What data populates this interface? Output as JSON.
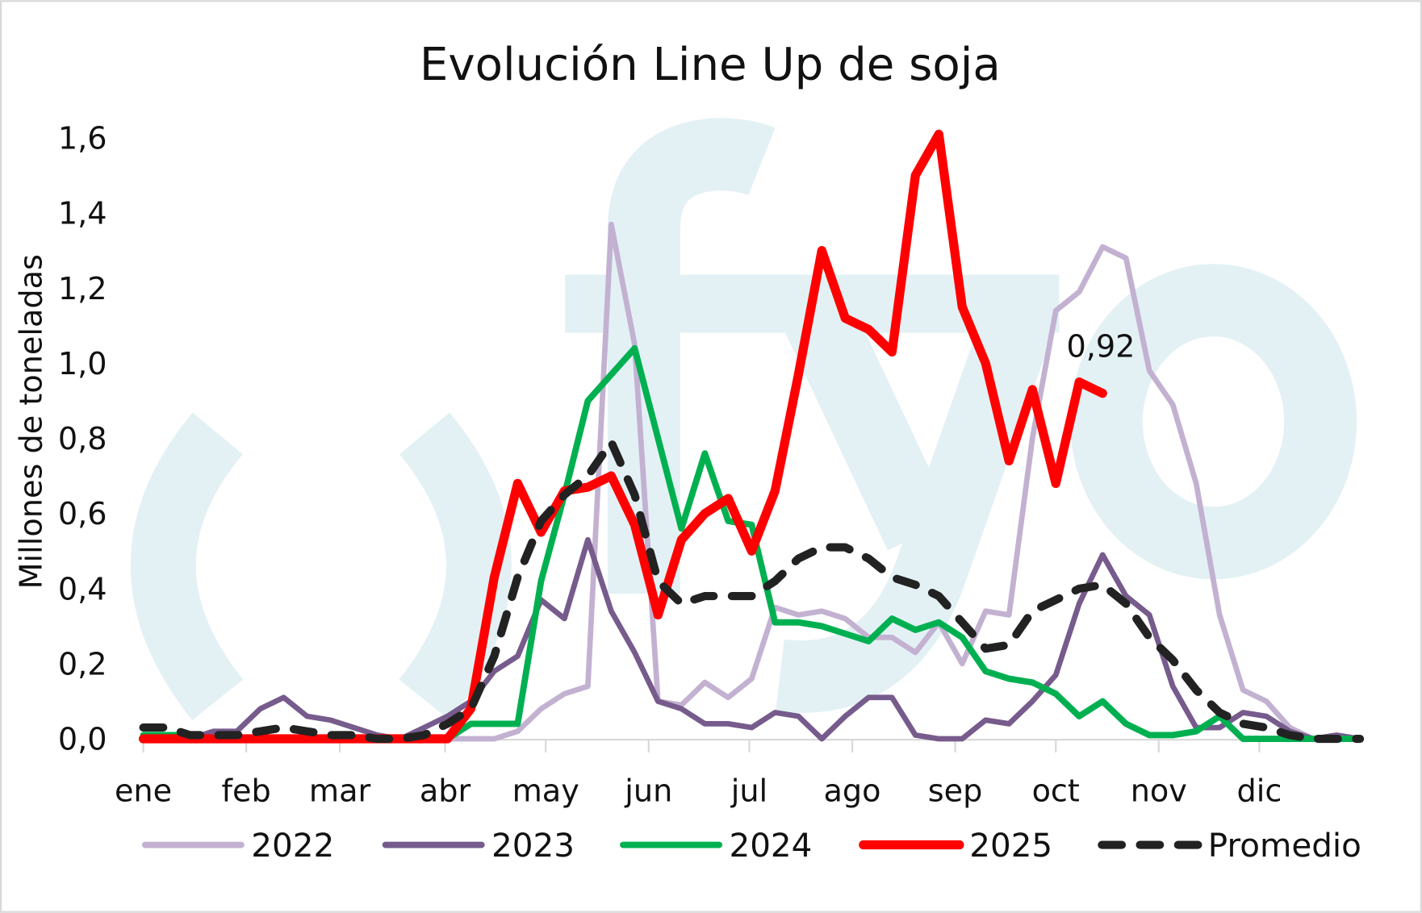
{
  "chart_data": {
    "type": "line",
    "title": "Evolución Line Up de soja",
    "xlabel": "",
    "ylabel": "Millones de toneladas",
    "ylim": [
      0,
      1.6
    ],
    "yticks": [
      "0,0",
      "0,2",
      "0,4",
      "0,6",
      "0,8",
      "1,0",
      "1,2",
      "1,4",
      "1,6"
    ],
    "ytick_values": [
      0,
      0.2,
      0.4,
      0.6,
      0.8,
      1.0,
      1.2,
      1.4,
      1.6
    ],
    "x_unit": "semana",
    "months": [
      {
        "label": "ene",
        "week": 0
      },
      {
        "label": "feb",
        "week": 4.4
      },
      {
        "label": "mar",
        "week": 8.4
      },
      {
        "label": "abr",
        "week": 12.9
      },
      {
        "label": "may",
        "week": 17.2
      },
      {
        "label": "jun",
        "week": 21.6
      },
      {
        "label": "jul",
        "week": 25.9
      },
      {
        "label": "ago",
        "week": 30.3
      },
      {
        "label": "sep",
        "week": 34.7
      },
      {
        "label": "oct",
        "week": 39.0
      },
      {
        "label": "nov",
        "week": 43.4
      },
      {
        "label": "dic",
        "week": 47.7
      }
    ],
    "grid": false,
    "legend_position": "bottom",
    "series": [
      {
        "name": "2022",
        "color": "#c3b1d1",
        "width": 6,
        "dash": false,
        "values": [
          0,
          0,
          0,
          0,
          0,
          0,
          0,
          0,
          0,
          0,
          0,
          0,
          0,
          0,
          0,
          0,
          0.02,
          0.08,
          0.12,
          0.14,
          1.37,
          1.05,
          0.1,
          0.09,
          0.15,
          0.11,
          0.16,
          0.35,
          0.33,
          0.34,
          0.32,
          0.27,
          0.27,
          0.23,
          0.31,
          0.2,
          0.34,
          0.33,
          0.8,
          1.14,
          1.19,
          1.31,
          1.28,
          0.98,
          0.89,
          0.68,
          0.33,
          0.13,
          0.1,
          0.03,
          0,
          0,
          0
        ]
      },
      {
        "name": "2023",
        "color": "#765b8c",
        "width": 6,
        "dash": false,
        "values": [
          0.01,
          0.01,
          0,
          0.02,
          0.02,
          0.08,
          0.11,
          0.06,
          0.05,
          0.03,
          0.01,
          0,
          0.03,
          0.06,
          0.1,
          0.18,
          0.22,
          0.37,
          0.32,
          0.53,
          0.34,
          0.23,
          0.1,
          0.08,
          0.04,
          0.04,
          0.03,
          0.07,
          0.06,
          0,
          0.06,
          0.11,
          0.11,
          0.01,
          0,
          0,
          0.05,
          0.04,
          0.1,
          0.17,
          0.36,
          0.49,
          0.38,
          0.33,
          0.14,
          0.03,
          0.03,
          0.07,
          0.06,
          0.02,
          0,
          0.01,
          0
        ]
      },
      {
        "name": "2024",
        "color": "#00b050",
        "width": 7,
        "dash": false,
        "values": [
          0.01,
          0.01,
          0.01,
          0,
          0,
          0,
          0,
          0,
          0,
          0,
          0,
          0,
          0,
          0,
          0.04,
          0.04,
          0.04,
          0.42,
          0.65,
          0.9,
          0.97,
          1.04,
          0.8,
          0.56,
          0.76,
          0.58,
          0.57,
          0.31,
          0.31,
          0.3,
          0.28,
          0.26,
          0.32,
          0.29,
          0.31,
          0.27,
          0.18,
          0.16,
          0.15,
          0.12,
          0.06,
          0.1,
          0.04,
          0.01,
          0.01,
          0.02,
          0.06,
          0,
          0,
          0,
          0,
          0,
          0
        ]
      },
      {
        "name": "2025",
        "color": "#ff0000",
        "width": 10,
        "dash": false,
        "values": [
          0,
          0,
          0,
          0,
          0,
          0,
          0,
          0,
          0,
          0,
          0,
          0,
          0,
          0,
          0.08,
          0.43,
          0.68,
          0.55,
          0.66,
          0.67,
          0.7,
          0.57,
          0.33,
          0.53,
          0.6,
          0.64,
          0.5,
          0.66,
          0.97,
          1.3,
          1.12,
          1.09,
          1.03,
          1.5,
          1.61,
          1.15,
          1.0,
          0.74,
          0.93,
          0.68,
          0.95,
          0.92
        ]
      },
      {
        "name": "Promedio",
        "color": "#222222",
        "width": 9,
        "dash": true,
        "values": [
          0.03,
          0.03,
          0.01,
          0.01,
          0.01,
          0.02,
          0.03,
          0.02,
          0.01,
          0.01,
          0,
          0,
          0.01,
          0.04,
          0.08,
          0.22,
          0.43,
          0.58,
          0.65,
          0.7,
          0.79,
          0.65,
          0.42,
          0.36,
          0.38,
          0.38,
          0.38,
          0.42,
          0.48,
          0.51,
          0.51,
          0.48,
          0.43,
          0.41,
          0.38,
          0.31,
          0.24,
          0.25,
          0.34,
          0.37,
          0.4,
          0.41,
          0.36,
          0.27,
          0.21,
          0.13,
          0.07,
          0.04,
          0.03,
          0.01,
          0,
          0,
          0
        ]
      }
    ],
    "annotations": [
      {
        "text": "0,92",
        "series": "2025",
        "week": 41,
        "value": 0.92
      }
    ]
  },
  "watermark": {
    "text": "fyo",
    "color": "#e3f1f5"
  }
}
